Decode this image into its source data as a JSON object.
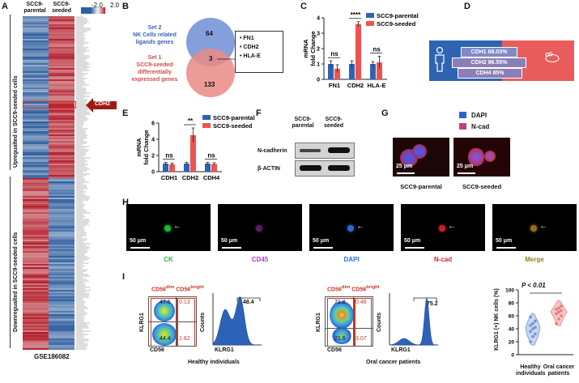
{
  "panelA": {
    "label": "A",
    "col1": "SCC9-\nparental",
    "col1_a": "SCC9-",
    "col1_b": "parental",
    "col2_a": "SCC9-",
    "col2_b": "seeded",
    "legend_min": "-2.0",
    "legend_max": "2.0",
    "up_label": "Upregualted in SCC9-seeded cells",
    "down_label": "Downregualted in SCC9-seeded cells",
    "highlight_gene": "CDH2",
    "dataset": "GSE186082",
    "colors": {
      "low": "#2f5fa0",
      "high": "#b51d2a",
      "mid": "#f4f4f4"
    }
  },
  "panelB": {
    "label": "B",
    "set2": [
      "Set 2",
      "NK Cells related",
      "ligands genes"
    ],
    "set1": [
      "Set 1",
      "SCC9-seeded",
      "differentially",
      "expressed genes"
    ],
    "only2": "64",
    "overlap": "3",
    "only1": "133",
    "genes": [
      "FN1",
      "CDH2",
      "HLA-E"
    ],
    "colors": {
      "set2": "#6f8fd6",
      "set1": "#e98a85"
    }
  },
  "panelC": {
    "label": "C",
    "ylabel_a": "mRNA",
    "ylabel_b": "fold Change",
    "legend": [
      "SCC9-parental",
      "SCC9-seeded"
    ],
    "sig": [
      "ns",
      "****",
      "ns"
    ],
    "chart_data": {
      "type": "bar",
      "categories": [
        "FN1",
        "CDH2",
        "HLA-E"
      ],
      "series": [
        {
          "name": "SCC9-parental",
          "values": [
            1.0,
            1.0,
            1.0
          ]
        },
        {
          "name": "SCC9-seeded",
          "values": [
            0.7,
            3.6,
            1.1
          ]
        }
      ],
      "errors": [
        [
          0.2,
          0.2,
          0.15
        ],
        [
          0.25,
          0.15,
          0.4
        ]
      ],
      "ylim": [
        0,
        4
      ],
      "yticks": [
        "0",
        "1",
        "2",
        "3",
        "4"
      ],
      "colors": [
        "#2e62b5",
        "#ef5350"
      ]
    }
  },
  "panelD": {
    "label": "D",
    "bars": [
      "CDH1 68.03%",
      "CDH2 96.55%",
      "CDH4 85%"
    ],
    "colors": {
      "left": "#2f64b3",
      "right": "#e95c5c"
    }
  },
  "panelE": {
    "label": "E",
    "ylabel_a": "mRNA",
    "ylabel_b": "fold Change",
    "legend": [
      "SCC9-parental",
      "SCC9-seeded"
    ],
    "sig": [
      "ns",
      "**",
      "ns"
    ],
    "chart_data": {
      "type": "bar",
      "categories": [
        "CDH1",
        "CDH2",
        "CDH4"
      ],
      "series": [
        {
          "name": "SCC9-parental",
          "values": [
            1.0,
            1.0,
            1.0
          ]
        },
        {
          "name": "SCC9-seeded",
          "values": [
            0.9,
            4.5,
            0.95
          ]
        }
      ],
      "errors": [
        [
          0.15,
          0.15,
          0.15
        ],
        [
          0.15,
          0.9,
          0.15
        ]
      ],
      "ylim": [
        0,
        6
      ],
      "yticks": [
        "0",
        "2",
        "4",
        "6"
      ],
      "colors": [
        "#2e62b5",
        "#ef5350"
      ]
    }
  },
  "panelF": {
    "label": "F",
    "col1_a": "SCC9-",
    "col1_b": "parental",
    "col2_a": "SCC9-",
    "col2_b": "seeded",
    "row1": "N-cadherin",
    "row2": "β-ACTIN"
  },
  "panelG": {
    "label": "G",
    "legend": [
      "DAPI",
      "N-cad"
    ],
    "legend_colors": [
      "#2f5fd6",
      "#c2417a"
    ],
    "scale": [
      "25 μm",
      "25 μm"
    ],
    "captions": [
      "SCC9-parental",
      "SCC9-seeded"
    ]
  },
  "panelH": {
    "label": "H",
    "scale": "50 μm",
    "channels": [
      {
        "name": "CK",
        "color": "#1fbf3a"
      },
      {
        "name": "CD45",
        "color": "#b23bd0"
      },
      {
        "name": "DAPI",
        "color": "#2f6fd6"
      },
      {
        "name": "N-cad",
        "color": "#d0242a"
      },
      {
        "name": "Merge",
        "color": "#9a7a1a"
      }
    ]
  },
  "panelI": {
    "label": "I",
    "healthy": {
      "gate_dim": "CD56",
      "gate_dim_sup": "dim",
      "gate_bright": "CD56",
      "gate_bright_sup": "bright",
      "q": [
        "47.6",
        "0.13",
        "44.4",
        "1.62"
      ],
      "x_axis": "CD56",
      "y_axis": "KLRG1",
      "hist_value": "48.4",
      "hist_x": "KLRG1",
      "hist_y": "Counts",
      "caption": "Healthy individuals"
    },
    "cancer": {
      "gate_dim": "CD56",
      "gate_dim_sup": "dim",
      "gate_bright": "CD56",
      "gate_bright_sup": "bright",
      "q": [
        "71.8",
        "0.46",
        "21.6",
        "3.07"
      ],
      "x_axis": "CD56",
      "y_axis": "KLRG1",
      "hist_value": "75.2",
      "hist_x": "KLRG1",
      "hist_y": "Counts",
      "caption": "Oral cancer patients"
    },
    "violin": {
      "pvalue": "P < 0.01",
      "ylabel": "KLRG1 (+) NK cells (%)",
      "yticks": [
        "0",
        "20",
        "40",
        "60",
        "80",
        "100"
      ],
      "groups": [
        "Healthy individuals",
        "Oral cancer patients"
      ],
      "group_a": [
        "Healthy",
        "individuals"
      ],
      "group_b": [
        "Oral cancer",
        "patients"
      ],
      "chart_data": {
        "type": "scatter",
        "categories": [
          "Healthy individuals",
          "Oral cancer patients"
        ],
        "series": [
          {
            "name": "Healthy individuals",
            "values": [
              20,
              28,
              32,
              36,
              40,
              42,
              45,
              48,
              52,
              58
            ]
          },
          {
            "name": "Oral cancer patients",
            "values": [
              48,
              55,
              60,
              63,
              66,
              68,
              70,
              72,
              75
            ]
          }
        ],
        "ylim": [
          0,
          100
        ],
        "colors": [
          "#6e93d6",
          "#e97a7a"
        ]
      }
    }
  }
}
